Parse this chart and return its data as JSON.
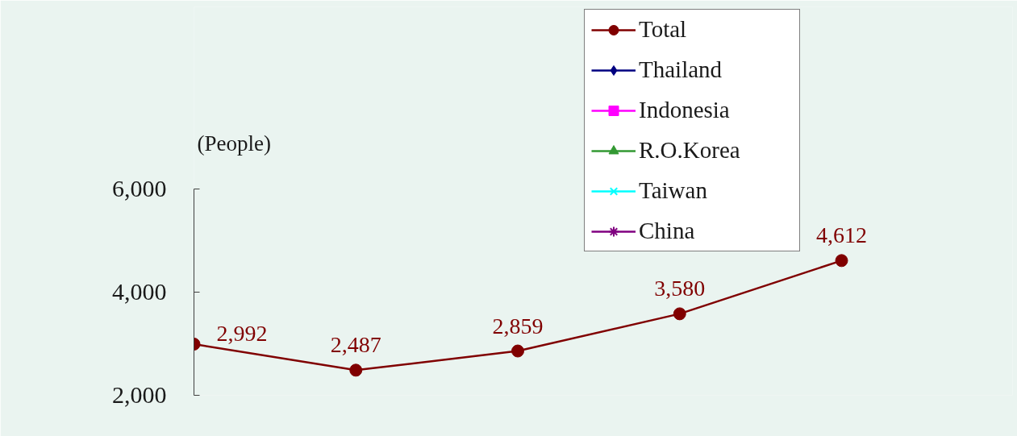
{
  "chart_data": {
    "type": "line",
    "ylabel": "(People)",
    "categories": [
      null,
      null,
      null,
      null,
      null
    ],
    "series": [
      {
        "name": "Total",
        "color": "#800000",
        "marker": "circle",
        "values": [
          2992,
          2487,
          2859,
          3580,
          4612
        ],
        "value_labels": [
          "2,992",
          "2,487",
          "2,859",
          "3,580",
          "4,612"
        ]
      },
      {
        "name": "Thailand",
        "color": "#000080",
        "marker": "diamond",
        "values": [
          null,
          null,
          null,
          null,
          null
        ]
      },
      {
        "name": "Indonesia",
        "color": "#ff00ff",
        "marker": "square",
        "values": [
          null,
          null,
          null,
          null,
          null
        ]
      },
      {
        "name": "R.O.Korea",
        "color": "#339933",
        "marker": "triangle",
        "values": [
          null,
          null,
          null,
          null,
          null
        ]
      },
      {
        "name": "Taiwan",
        "color": "#00ffff",
        "marker": "cross",
        "values": [
          null,
          null,
          null,
          null,
          null
        ]
      },
      {
        "name": "China",
        "color": "#800080",
        "marker": "star",
        "values": [
          null,
          null,
          null,
          null,
          null
        ]
      }
    ],
    "ylim": [
      2000,
      6000
    ],
    "yticks": [
      {
        "value": 2000,
        "label": "2,000"
      },
      {
        "value": 4000,
        "label": "4,000"
      },
      {
        "value": 6000,
        "label": "6,000"
      }
    ],
    "legend": "top right",
    "tick_labels": "y"
  }
}
